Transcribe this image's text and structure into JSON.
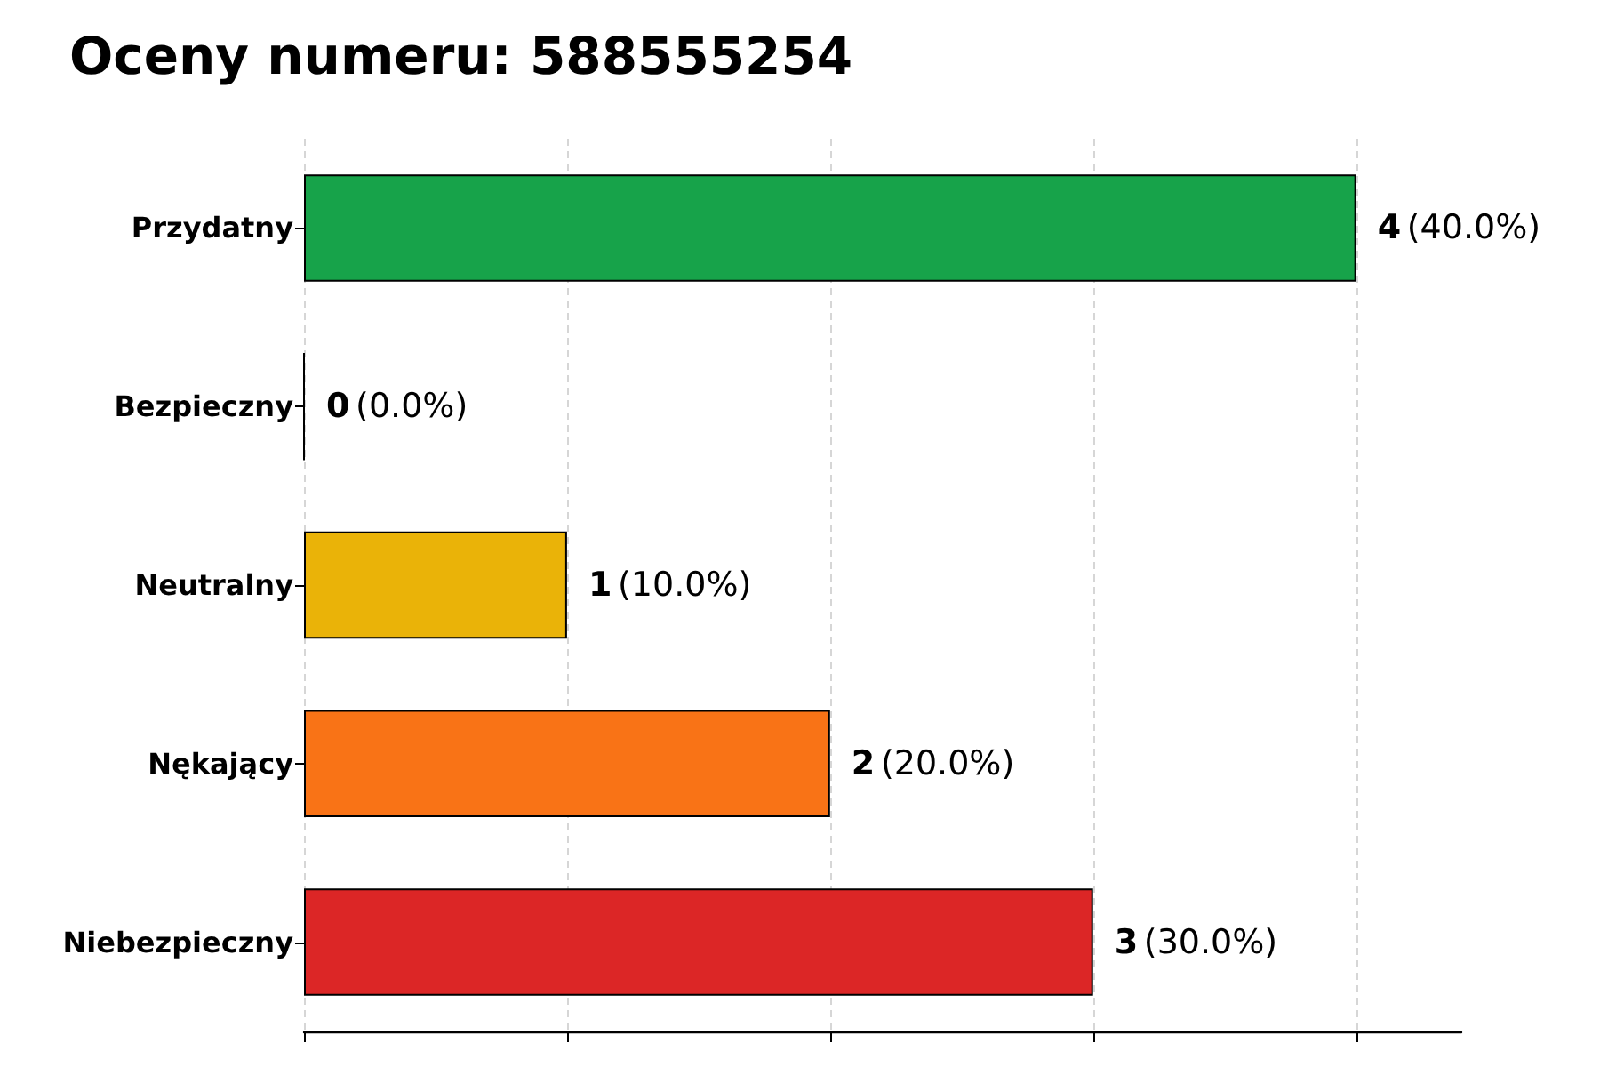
{
  "chart_data": {
    "type": "bar",
    "orientation": "horizontal",
    "title": "Oceny numeru: 588555254",
    "categories": [
      "Przydatny",
      "Bezpieczny",
      "Neutralny",
      "Nękający",
      "Niebezpieczny"
    ],
    "values": [
      4,
      0,
      1,
      2,
      3
    ],
    "colors": [
      "#17a34a",
      "#000000",
      "#eab308",
      "#f97316",
      "#dc2626"
    ],
    "value_labels": [
      "4 (40.0%)",
      "0 (0.0%)",
      "1 (10.0%)",
      "2 (20.0%)",
      "3 (30.0%)"
    ],
    "xlim": [
      0,
      4.4
    ],
    "xticks": [
      {
        "value": 0,
        "label": null
      },
      {
        "value": 1,
        "label": null
      },
      {
        "value": 2,
        "label": null
      },
      {
        "value": 3,
        "label": null
      },
      {
        "value": 4,
        "label": null
      }
    ],
    "grid": "x",
    "tick_labels": "y"
  }
}
